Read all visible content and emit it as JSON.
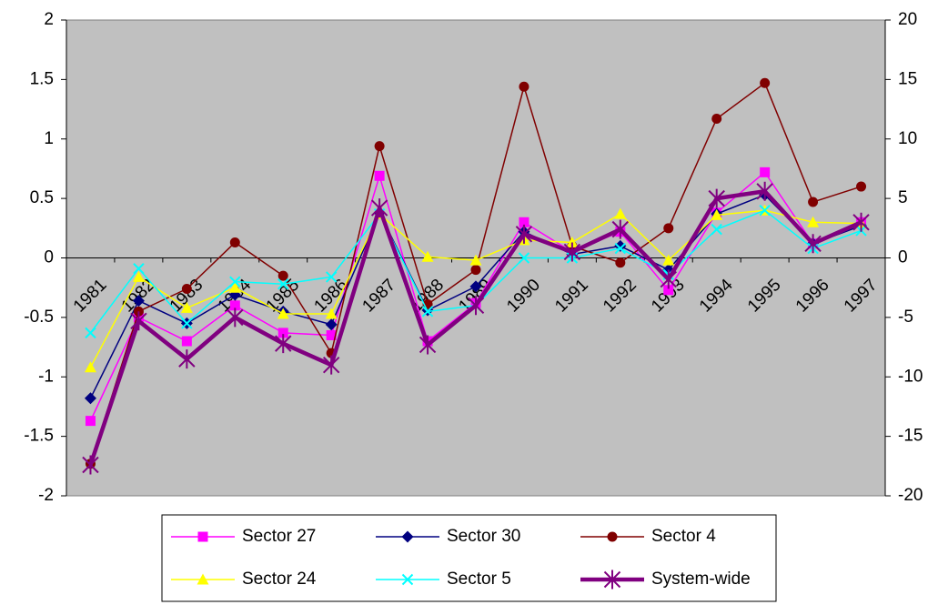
{
  "chart_data": {
    "type": "line",
    "categories": [
      "1981",
      "1982",
      "1983",
      "1984",
      "1985",
      "1986",
      "1987",
      "1988",
      "1989",
      "1990",
      "1991",
      "1992",
      "1993",
      "1994",
      "1995",
      "1996",
      "1997"
    ],
    "series": [
      {
        "name": "Sector 27",
        "color": "#ff00ff",
        "marker": "square",
        "line_width": 1.5,
        "values": [
          -1.37,
          -0.5,
          -0.7,
          -0.4,
          -0.63,
          -0.65,
          0.69,
          -0.7,
          -0.38,
          0.3,
          0.05,
          0.22,
          -0.27,
          0.38,
          0.72,
          0.12,
          0.3
        ]
      },
      {
        "name": "Sector 30",
        "color": "#000080",
        "marker": "diamond",
        "line_width": 1.5,
        "values": [
          -1.18,
          -0.36,
          -0.55,
          -0.31,
          -0.45,
          -0.56,
          0.38,
          -0.44,
          -0.24,
          0.22,
          0.03,
          0.1,
          -0.1,
          0.37,
          0.53,
          0.12,
          0.27
        ]
      },
      {
        "name": "Sector 4",
        "color": "#800000",
        "marker": "circle",
        "line_width": 1.5,
        "values": [
          -1.73,
          -0.45,
          -0.26,
          0.13,
          -0.15,
          -0.8,
          0.94,
          -0.39,
          -0.1,
          1.44,
          0.1,
          -0.04,
          0.25,
          1.17,
          1.47,
          0.47,
          0.6
        ]
      },
      {
        "name": "Sector 24",
        "color": "#ffff00",
        "marker": "triangle",
        "line_width": 1.5,
        "values": [
          -0.92,
          -0.16,
          -0.42,
          -0.25,
          -0.47,
          -0.47,
          0.37,
          0.01,
          -0.02,
          0.15,
          0.13,
          0.37,
          -0.02,
          0.36,
          0.4,
          0.3,
          0.29
        ]
      },
      {
        "name": "Sector 5",
        "color": "#00ffff",
        "marker": "x",
        "line_width": 1.5,
        "values": [
          -0.63,
          -0.09,
          -0.55,
          -0.2,
          -0.22,
          -0.16,
          0.37,
          -0.45,
          -0.4,
          0.0,
          0.0,
          0.08,
          -0.14,
          0.24,
          0.4,
          0.08,
          0.23
        ]
      },
      {
        "name": "System-wide",
        "color": "#800080",
        "marker": "star",
        "line_width": 4.5,
        "values": [
          -1.74,
          -0.53,
          -0.85,
          -0.5,
          -0.72,
          -0.9,
          0.42,
          -0.73,
          -0.4,
          0.2,
          0.05,
          0.24,
          -0.18,
          0.5,
          0.56,
          0.12,
          0.3
        ]
      }
    ],
    "ylim": [
      -2,
      2
    ],
    "yticks": [
      2,
      1.5,
      1,
      0.5,
      0,
      -0.5,
      -1,
      -1.5,
      -2
    ],
    "y2lim": [
      -20,
      20
    ],
    "y2ticks": [
      20,
      15,
      10,
      5,
      0,
      -5,
      -10,
      -15,
      -20
    ],
    "plot_background": "#c0c0c0",
    "legend": "bottom"
  }
}
